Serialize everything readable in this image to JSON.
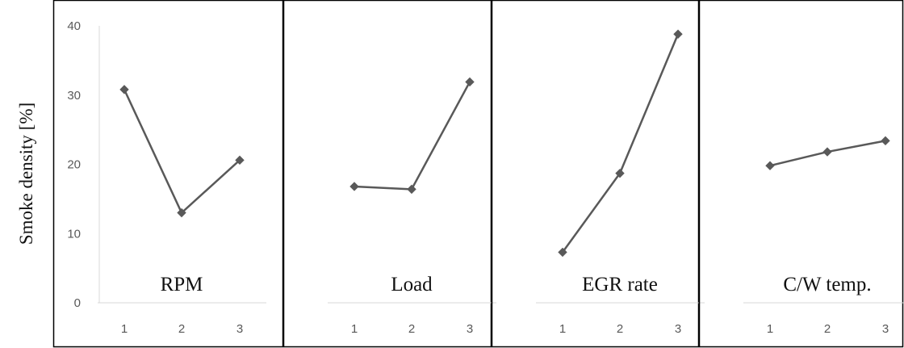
{
  "chart_data": {
    "type": "line",
    "ylabel": "Smoke density  [%]",
    "ylim": [
      0,
      40
    ],
    "yticks": [
      0,
      10,
      20,
      30,
      40
    ],
    "categories": [
      "1",
      "2",
      "3"
    ],
    "line_color": "#595959",
    "axis_color": "#d9d9d9",
    "border_color": "#000000",
    "grid": false,
    "marker": "diamond",
    "panels": [
      {
        "label": "RPM",
        "values": [
          30.8,
          13.0,
          20.6
        ]
      },
      {
        "label": "Load",
        "values": [
          16.8,
          16.4,
          31.9
        ]
      },
      {
        "label": "EGR rate",
        "values": [
          7.3,
          18.7,
          38.8
        ]
      },
      {
        "label": "C/W temp.",
        "values": [
          19.8,
          21.8,
          23.4
        ]
      }
    ]
  }
}
